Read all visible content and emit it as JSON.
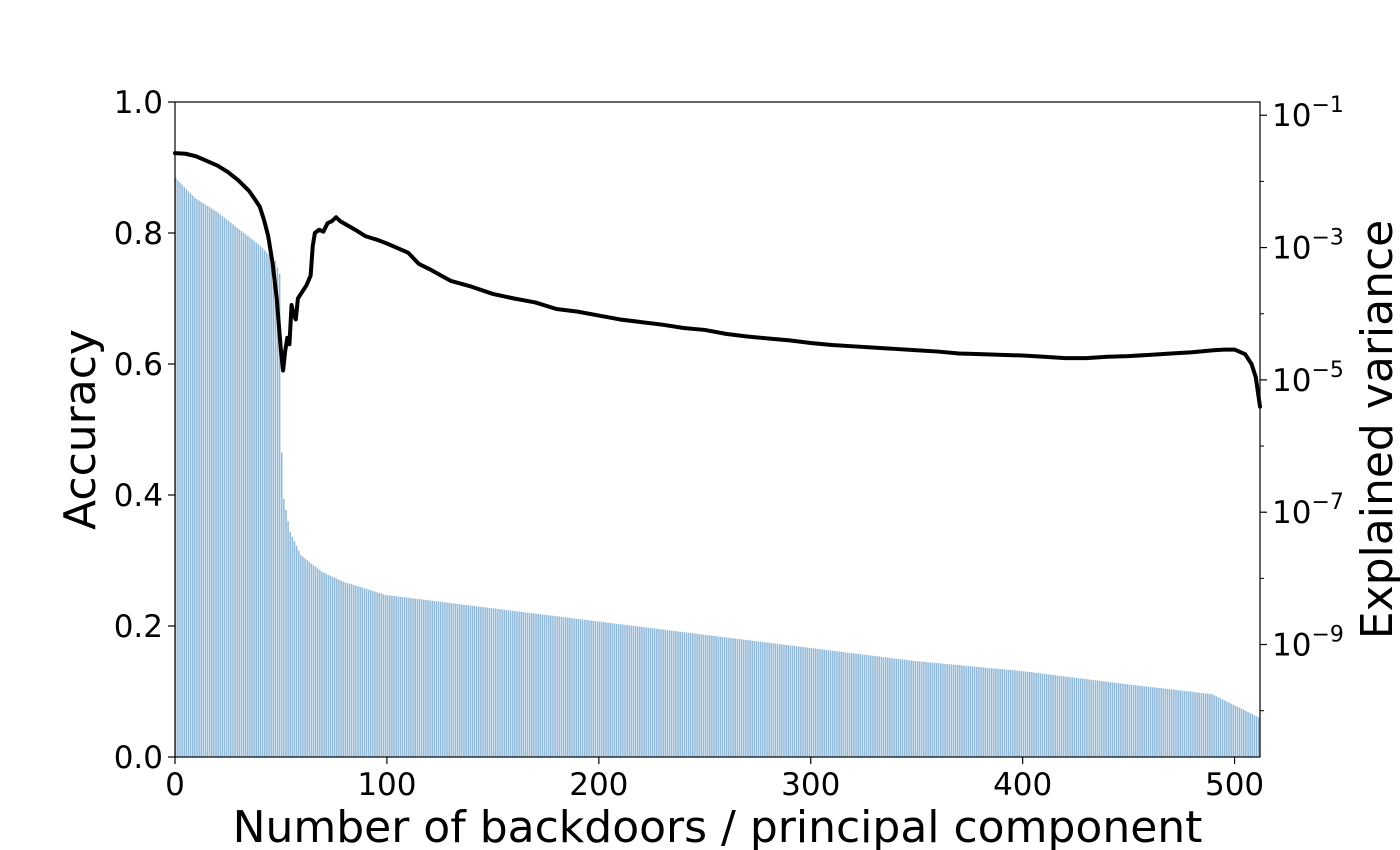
{
  "chart_data": {
    "type": "bar",
    "xlabel": "Number of backdoors / principal component",
    "ylabel": "Accuracy",
    "y2label": "Explained variance",
    "xlim": [
      0,
      512
    ],
    "ylim": [
      0,
      1.0
    ],
    "y2lim_log10": [
      -10.7,
      -0.8
    ],
    "y2scale": "log",
    "grid": false,
    "xticks": [
      0,
      100,
      200,
      300,
      400,
      500
    ],
    "yticks": [
      0.0,
      0.2,
      0.4,
      0.6,
      0.8,
      1.0
    ],
    "yticklabels": [
      "0.0",
      "0.2",
      "0.4",
      "0.6",
      "0.8",
      "1.0"
    ],
    "y2ticks_exponents": [
      -1,
      -3,
      -5,
      -7,
      -9
    ],
    "y2ticklabels": [
      "10",
      "10",
      "10",
      "10",
      "10"
    ],
    "y2ticklabel_exponents": [
      "−1",
      "−3",
      "−5",
      "−7",
      "−9"
    ],
    "series": [
      {
        "kind": "bar",
        "axis": "right",
        "color": "#8fb8d9",
        "count": 512,
        "x_start": 1,
        "log10_value_knots": [
          [
            1,
            -1.95
          ],
          [
            10,
            -2.25
          ],
          [
            20,
            -2.45
          ],
          [
            30,
            -2.7
          ],
          [
            40,
            -2.95
          ],
          [
            48,
            -3.2
          ],
          [
            50,
            -3.4
          ],
          [
            51,
            -6.1
          ],
          [
            52,
            -6.8
          ],
          [
            55,
            -7.3
          ],
          [
            60,
            -7.65
          ],
          [
            70,
            -7.9
          ],
          [
            80,
            -8.05
          ],
          [
            100,
            -8.25
          ],
          [
            150,
            -8.45
          ],
          [
            200,
            -8.65
          ],
          [
            250,
            -8.85
          ],
          [
            300,
            -9.05
          ],
          [
            350,
            -9.25
          ],
          [
            400,
            -9.4
          ],
          [
            450,
            -9.6
          ],
          [
            490,
            -9.75
          ],
          [
            512,
            -10.1
          ]
        ]
      },
      {
        "kind": "line",
        "axis": "left",
        "color": "#000000",
        "points": [
          [
            0,
            0.922
          ],
          [
            5,
            0.921
          ],
          [
            10,
            0.917
          ],
          [
            15,
            0.91
          ],
          [
            20,
            0.903
          ],
          [
            25,
            0.893
          ],
          [
            30,
            0.88
          ],
          [
            35,
            0.864
          ],
          [
            38,
            0.85
          ],
          [
            40,
            0.84
          ],
          [
            42,
            0.82
          ],
          [
            44,
            0.795
          ],
          [
            46,
            0.755
          ],
          [
            48,
            0.7
          ],
          [
            49,
            0.66
          ],
          [
            50,
            0.62
          ],
          [
            51,
            0.59
          ],
          [
            52,
            0.62
          ],
          [
            53,
            0.64
          ],
          [
            54,
            0.63
          ],
          [
            55,
            0.69
          ],
          [
            56,
            0.675
          ],
          [
            57,
            0.668
          ],
          [
            58,
            0.7
          ],
          [
            60,
            0.71
          ],
          [
            62,
            0.72
          ],
          [
            64,
            0.735
          ],
          [
            65,
            0.78
          ],
          [
            66,
            0.8
          ],
          [
            68,
            0.805
          ],
          [
            70,
            0.802
          ],
          [
            72,
            0.815
          ],
          [
            74,
            0.818
          ],
          [
            76,
            0.824
          ],
          [
            78,
            0.818
          ],
          [
            85,
            0.805
          ],
          [
            90,
            0.795
          ],
          [
            95,
            0.79
          ],
          [
            100,
            0.784
          ],
          [
            110,
            0.77
          ],
          [
            115,
            0.753
          ],
          [
            120,
            0.745
          ],
          [
            130,
            0.727
          ],
          [
            140,
            0.718
          ],
          [
            150,
            0.707
          ],
          [
            160,
            0.7
          ],
          [
            170,
            0.694
          ],
          [
            180,
            0.684
          ],
          [
            190,
            0.68
          ],
          [
            200,
            0.674
          ],
          [
            210,
            0.668
          ],
          [
            220,
            0.664
          ],
          [
            230,
            0.66
          ],
          [
            240,
            0.655
          ],
          [
            250,
            0.652
          ],
          [
            260,
            0.646
          ],
          [
            270,
            0.642
          ],
          [
            280,
            0.639
          ],
          [
            290,
            0.636
          ],
          [
            300,
            0.632
          ],
          [
            310,
            0.629
          ],
          [
            320,
            0.627
          ],
          [
            330,
            0.625
          ],
          [
            340,
            0.623
          ],
          [
            350,
            0.621
          ],
          [
            360,
            0.619
          ],
          [
            370,
            0.616
          ],
          [
            380,
            0.615
          ],
          [
            390,
            0.614
          ],
          [
            400,
            0.613
          ],
          [
            410,
            0.611
          ],
          [
            420,
            0.609
          ],
          [
            430,
            0.609
          ],
          [
            440,
            0.611
          ],
          [
            450,
            0.612
          ],
          [
            460,
            0.614
          ],
          [
            470,
            0.616
          ],
          [
            480,
            0.618
          ],
          [
            490,
            0.621
          ],
          [
            495,
            0.622
          ],
          [
            500,
            0.622
          ],
          [
            505,
            0.615
          ],
          [
            508,
            0.6
          ],
          [
            510,
            0.58
          ],
          [
            512,
            0.535
          ]
        ]
      }
    ]
  }
}
